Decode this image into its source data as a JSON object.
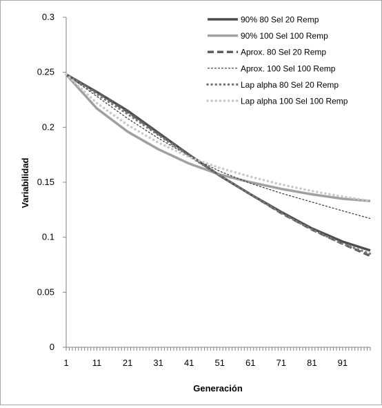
{
  "chart_data": {
    "type": "line",
    "title": "",
    "xlabel": "Generación",
    "ylabel": "Variabilidad",
    "xlim": [
      1,
      100
    ],
    "ylim": [
      0,
      0.3
    ],
    "x_tick_labels": [
      "1",
      "11",
      "21",
      "31",
      "41",
      "51",
      "61",
      "71",
      "81",
      "91"
    ],
    "y_tick_labels": [
      "0",
      "0.05",
      "0.1",
      "0.15",
      "0.2",
      "0.25",
      "0.3"
    ],
    "grid": false,
    "legend_position": "top-right",
    "series": [
      {
        "name": "90% 80 Sel 20 Remp",
        "color": "#4d4d4d",
        "style": "solid-thick",
        "x": [
          1,
          11,
          21,
          31,
          41,
          51,
          61,
          71,
          81,
          91,
          100
        ],
        "y": [
          0.248,
          0.232,
          0.215,
          0.195,
          0.175,
          0.156,
          0.139,
          0.123,
          0.108,
          0.096,
          0.088
        ]
      },
      {
        "name": "90% 100 Sel 100 Remp",
        "color": "#a0a0a0",
        "style": "solid-thick",
        "x": [
          1,
          11,
          21,
          31,
          41,
          51,
          61,
          71,
          81,
          91,
          100
        ],
        "y": [
          0.248,
          0.217,
          0.196,
          0.18,
          0.167,
          0.157,
          0.15,
          0.144,
          0.139,
          0.135,
          0.133
        ]
      },
      {
        "name": "Aprox. 80 Sel 20 Remp",
        "color": "#5f5f5f",
        "style": "dashed-thick",
        "x": [
          1,
          11,
          21,
          31,
          41,
          51,
          61,
          71,
          81,
          91,
          100
        ],
        "y": [
          0.248,
          0.232,
          0.214,
          0.194,
          0.175,
          0.156,
          0.139,
          0.122,
          0.107,
          0.094,
          0.083
        ]
      },
      {
        "name": "Aprox. 100 Sel 100 Remp",
        "color": "#333333",
        "style": "dashed-thin",
        "x": [
          1,
          11,
          21,
          31,
          41,
          51,
          61,
          71,
          81,
          91,
          100
        ],
        "y": [
          0.248,
          0.228,
          0.208,
          0.19,
          0.174,
          0.16,
          0.149,
          0.14,
          0.132,
          0.124,
          0.117
        ]
      },
      {
        "name": "Lap alpha 80 Sel 20 Remp",
        "color": "#7a7a7a",
        "style": "dotted-thick",
        "x": [
          1,
          11,
          21,
          31,
          41,
          51,
          61,
          71,
          81,
          91,
          100
        ],
        "y": [
          0.248,
          0.23,
          0.212,
          0.193,
          0.174,
          0.156,
          0.139,
          0.122,
          0.107,
          0.094,
          0.085
        ]
      },
      {
        "name": "Lap alpha 100 Sel 100 Remp",
        "color": "#c8c8c8",
        "style": "dotted-thick",
        "x": [
          1,
          11,
          21,
          31,
          41,
          51,
          61,
          71,
          81,
          91,
          100
        ],
        "y": [
          0.248,
          0.222,
          0.202,
          0.186,
          0.173,
          0.163,
          0.155,
          0.148,
          0.142,
          0.137,
          0.133
        ]
      }
    ]
  }
}
